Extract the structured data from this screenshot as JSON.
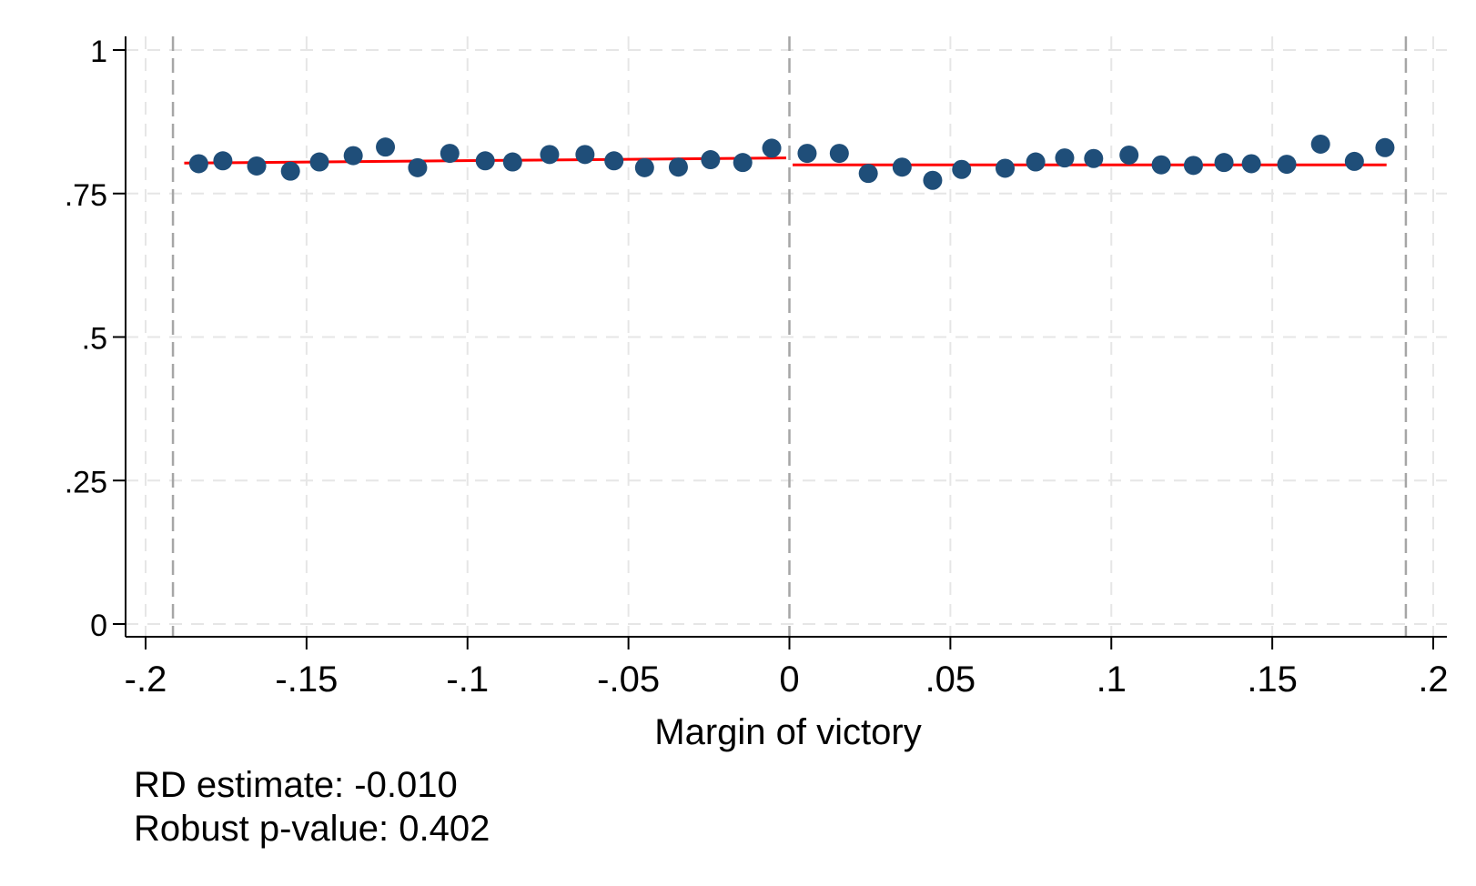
{
  "chart_data": {
    "type": "scatter",
    "title": "",
    "xlabel": "Margin of victory",
    "ylabel": "",
    "xlim": [
      -0.2,
      0.2
    ],
    "ylim": [
      0,
      1
    ],
    "x_ticks": [
      {
        "value": -0.2,
        "label": "-.2"
      },
      {
        "value": -0.15,
        "label": "-.15"
      },
      {
        "value": -0.1,
        "label": "-.1"
      },
      {
        "value": -0.05,
        "label": "-.05"
      },
      {
        "value": 0,
        "label": "0"
      },
      {
        "value": 0.05,
        "label": ".05"
      },
      {
        "value": 0.1,
        "label": ".1"
      },
      {
        "value": 0.15,
        "label": ".15"
      },
      {
        "value": 0.2,
        "label": ".2"
      }
    ],
    "y_ticks": [
      {
        "value": 0,
        "label": "0"
      },
      {
        "value": 0.25,
        "label": ".25"
      },
      {
        "value": 0.5,
        "label": ".5"
      },
      {
        "value": 0.75,
        "label": ".75"
      },
      {
        "value": 1,
        "label": "1"
      }
    ],
    "grid": true,
    "vlines": [
      -0.1915,
      0,
      0.1915
    ],
    "points": [
      {
        "x": -0.1835,
        "y": 0.802
      },
      {
        "x": -0.176,
        "y": 0.807
      },
      {
        "x": -0.1655,
        "y": 0.798
      },
      {
        "x": -0.155,
        "y": 0.789
      },
      {
        "x": -0.146,
        "y": 0.805
      },
      {
        "x": -0.1355,
        "y": 0.816
      },
      {
        "x": -0.1255,
        "y": 0.831
      },
      {
        "x": -0.1155,
        "y": 0.795
      },
      {
        "x": -0.1055,
        "y": 0.82
      },
      {
        "x": -0.0945,
        "y": 0.807
      },
      {
        "x": -0.086,
        "y": 0.805
      },
      {
        "x": -0.0745,
        "y": 0.818
      },
      {
        "x": -0.0635,
        "y": 0.818
      },
      {
        "x": -0.0545,
        "y": 0.807
      },
      {
        "x": -0.045,
        "y": 0.795
      },
      {
        "x": -0.0345,
        "y": 0.796
      },
      {
        "x": -0.0245,
        "y": 0.809
      },
      {
        "x": -0.0145,
        "y": 0.804
      },
      {
        "x": -0.0055,
        "y": 0.829
      },
      {
        "x": 0.0055,
        "y": 0.82
      },
      {
        "x": 0.0155,
        "y": 0.82
      },
      {
        "x": 0.0245,
        "y": 0.785
      },
      {
        "x": 0.035,
        "y": 0.796
      },
      {
        "x": 0.0445,
        "y": 0.773
      },
      {
        "x": 0.0535,
        "y": 0.792
      },
      {
        "x": 0.067,
        "y": 0.794
      },
      {
        "x": 0.0765,
        "y": 0.805
      },
      {
        "x": 0.0855,
        "y": 0.812
      },
      {
        "x": 0.0945,
        "y": 0.811
      },
      {
        "x": 0.1055,
        "y": 0.817
      },
      {
        "x": 0.1155,
        "y": 0.8
      },
      {
        "x": 0.1255,
        "y": 0.799
      },
      {
        "x": 0.135,
        "y": 0.804
      },
      {
        "x": 0.1435,
        "y": 0.802
      },
      {
        "x": 0.1545,
        "y": 0.801
      },
      {
        "x": 0.165,
        "y": 0.836
      },
      {
        "x": 0.1755,
        "y": 0.806
      },
      {
        "x": 0.185,
        "y": 0.83
      }
    ],
    "fit_lines": [
      {
        "x": [
          -0.188,
          -0.001
        ],
        "y": [
          0.803,
          0.812
        ]
      },
      {
        "x": [
          0.001,
          0.1855
        ],
        "y": [
          0.8,
          0.8
        ]
      }
    ],
    "colors": {
      "point": "#1f4e79",
      "fit": "#ff0000",
      "grid": "#e6e6e6",
      "vline": "#a6a6a6",
      "axis": "#000000"
    }
  },
  "notes": {
    "rd_estimate": "RD estimate: -0.010",
    "p_value": "Robust p-value: 0.402"
  }
}
